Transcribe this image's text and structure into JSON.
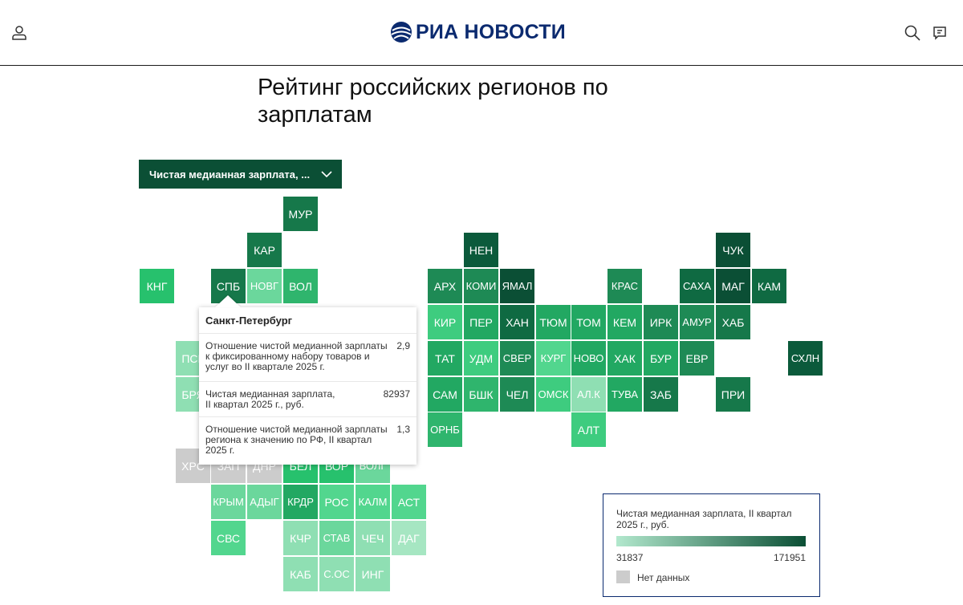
{
  "header": {
    "logo_text": "РИА НОВОСТИ",
    "icons": [
      "user-icon",
      "search-icon",
      "comment-icon"
    ],
    "brand_color": "#0b2a6f"
  },
  "title": "Рейтинг российских регионов по зарплатам",
  "dropdown": {
    "label": "Чистая медианная зарплата, ..."
  },
  "map": {
    "regions": [
      {
        "label": "МУР",
        "row": 0,
        "col": 8,
        "color": "#16784a"
      },
      {
        "label": "КАР",
        "row": 1,
        "col": 7,
        "color": "#16784a"
      },
      {
        "label": "НЕН",
        "row": 1,
        "col": 13,
        "color": "#0b5a3b"
      },
      {
        "label": "ЧУК",
        "row": 1,
        "col": 20,
        "color": "#0b4f35"
      },
      {
        "label": "КНГ",
        "row": 2,
        "col": 4,
        "color": "#27c16d"
      },
      {
        "label": "СПБ",
        "row": 2,
        "col": 6,
        "color": "#16784a"
      },
      {
        "label": "НОВГ",
        "row": 2,
        "col": 7,
        "color": "#6bd79c"
      },
      {
        "label": "ВОЛ",
        "row": 2,
        "col": 8,
        "color": "#2fb56d"
      },
      {
        "label": "АРХ",
        "row": 2,
        "col": 12,
        "color": "#1e8a55"
      },
      {
        "label": "КОМИ",
        "row": 2,
        "col": 13,
        "color": "#1e8a55"
      },
      {
        "label": "ЯМАЛ",
        "row": 2,
        "col": 14,
        "color": "#0b4f35"
      },
      {
        "label": "КРАС",
        "row": 2,
        "col": 17,
        "color": "#1e8a55"
      },
      {
        "label": "САХА",
        "row": 2,
        "col": 19,
        "color": "#0f6a42"
      },
      {
        "label": "МАГ",
        "row": 2,
        "col": 20,
        "color": "#0b4f35"
      },
      {
        "label": "КАМ",
        "row": 2,
        "col": 21,
        "color": "#0f6a42"
      },
      {
        "label": "КИР",
        "row": 3,
        "col": 12,
        "color": "#3ecc7f"
      },
      {
        "label": "ПЕР",
        "row": 3,
        "col": 13,
        "color": "#22a862"
      },
      {
        "label": "ХАН",
        "row": 3,
        "col": 14,
        "color": "#0f6a42"
      },
      {
        "label": "ТЮМ",
        "row": 3,
        "col": 15,
        "color": "#22a862"
      },
      {
        "label": "ТОМ",
        "row": 3,
        "col": 16,
        "color": "#22a862"
      },
      {
        "label": "КЕМ",
        "row": 3,
        "col": 17,
        "color": "#22a862"
      },
      {
        "label": "ИРК",
        "row": 3,
        "col": 18,
        "color": "#1e8a55"
      },
      {
        "label": "АМУР",
        "row": 3,
        "col": 19,
        "color": "#1e8a55"
      },
      {
        "label": "ХАБ",
        "row": 3,
        "col": 20,
        "color": "#16784a"
      },
      {
        "label": "ПСК",
        "row": 4,
        "col": 5,
        "color": "#8fdfb3"
      },
      {
        "label": "ТАТ",
        "row": 4,
        "col": 12,
        "color": "#22a862"
      },
      {
        "label": "УДМ",
        "row": 4,
        "col": 13,
        "color": "#3ecc7f"
      },
      {
        "label": "СВЕР",
        "row": 4,
        "col": 14,
        "color": "#1e8a55"
      },
      {
        "label": "КУРГ",
        "row": 4,
        "col": 15,
        "color": "#52d68e"
      },
      {
        "label": "НОВО",
        "row": 4,
        "col": 16,
        "color": "#22a862"
      },
      {
        "label": "ХАК",
        "row": 4,
        "col": 17,
        "color": "#22a862"
      },
      {
        "label": "БУР",
        "row": 4,
        "col": 18,
        "color": "#22a862"
      },
      {
        "label": "ЕВР",
        "row": 4,
        "col": 19,
        "color": "#1e8a55"
      },
      {
        "label": "СХЛН",
        "row": 4,
        "col": 22,
        "color": "#0b5a3b"
      },
      {
        "label": "БРЯ",
        "row": 5,
        "col": 5,
        "color": "#8fdfb3"
      },
      {
        "label": "САМ",
        "row": 5,
        "col": 12,
        "color": "#22a862"
      },
      {
        "label": "БШК",
        "row": 5,
        "col": 13,
        "color": "#2fb56d"
      },
      {
        "label": "ЧЕЛ",
        "row": 5,
        "col": 14,
        "color": "#1e8a55"
      },
      {
        "label": "ОМСК",
        "row": 5,
        "col": 15,
        "color": "#3ecc7f"
      },
      {
        "label": "АЛ.К",
        "row": 5,
        "col": 16,
        "color": "#8fdfb3"
      },
      {
        "label": "ТУВА",
        "row": 5,
        "col": 17,
        "color": "#22a862"
      },
      {
        "label": "ЗАБ",
        "row": 5,
        "col": 18,
        "color": "#16784a"
      },
      {
        "label": "ПРИ",
        "row": 5,
        "col": 20,
        "color": "#16784a"
      },
      {
        "label": "ОРНБ",
        "row": 6,
        "col": 12,
        "color": "#2fb56d"
      },
      {
        "label": "АЛТ",
        "row": 6,
        "col": 16,
        "color": "#3ecc7f"
      },
      {
        "label": "ХРС",
        "row": 7,
        "col": 5,
        "color": "nodata"
      },
      {
        "label": "ЗАП",
        "row": 7,
        "col": 6,
        "color": "nodata"
      },
      {
        "label": "ДНР",
        "row": 7,
        "col": 7,
        "color": "nodata"
      },
      {
        "label": "БЕЛ",
        "row": 7,
        "col": 8,
        "color": "#27c16d"
      },
      {
        "label": "ВОР",
        "row": 7,
        "col": 9,
        "color": "#27c16d"
      },
      {
        "label": "ВОЛГ",
        "row": 7,
        "col": 10,
        "color": "#6bd79c"
      },
      {
        "label": "КРЫМ",
        "row": 8,
        "col": 6,
        "color": "#6bd79c"
      },
      {
        "label": "АДЫГ",
        "row": 8,
        "col": 7,
        "color": "#6bd79c"
      },
      {
        "label": "КРДР",
        "row": 8,
        "col": 8,
        "color": "#22a862"
      },
      {
        "label": "РОС",
        "row": 8,
        "col": 9,
        "color": "#52d68e"
      },
      {
        "label": "КАЛМ",
        "row": 8,
        "col": 10,
        "color": "#52d68e"
      },
      {
        "label": "АСТ",
        "row": 8,
        "col": 11,
        "color": "#52d68e"
      },
      {
        "label": "СВС",
        "row": 9,
        "col": 6,
        "color": "#52d68e"
      },
      {
        "label": "КЧР",
        "row": 9,
        "col": 8,
        "color": "#8fdfb3"
      },
      {
        "label": "СТАВ",
        "row": 9,
        "col": 9,
        "color": "#6bd79c"
      },
      {
        "label": "ЧЕЧ",
        "row": 9,
        "col": 10,
        "color": "#8fdfb3"
      },
      {
        "label": "ДАГ",
        "row": 9,
        "col": 11,
        "color": "#a6e6c2"
      },
      {
        "label": "КАБ",
        "row": 10,
        "col": 8,
        "color": "#8fdfb3"
      },
      {
        "label": "С.ОС",
        "row": 10,
        "col": 9,
        "color": "#8fdfb3"
      },
      {
        "label": "ИНГ",
        "row": 10,
        "col": 10,
        "color": "#8fdfb3"
      }
    ]
  },
  "tooltip": {
    "region": "Санкт-Петербург",
    "rows": [
      {
        "label": "Отношение чистой медианной зарплаты к фиксированному набору товаров и услуг во II квартале 2025 г.",
        "value": "2,9"
      },
      {
        "label": "Чистая медианная зарплата, II квартал 2025 г., руб.",
        "value": "82937"
      },
      {
        "label": "Отношение чистой медианной зарплаты региона к значению по РФ, II квартал 2025 г.",
        "value": "1,3"
      }
    ]
  },
  "legend": {
    "title": "Чистая медианная зарплата, II квартал 2025 г., руб.",
    "min": "31837",
    "max": "171951",
    "gradient_from": "#b2e8cd",
    "gradient_to": "#0b4f35",
    "no_data_label": "Нет данных",
    "no_data_color": "#cccccc"
  }
}
